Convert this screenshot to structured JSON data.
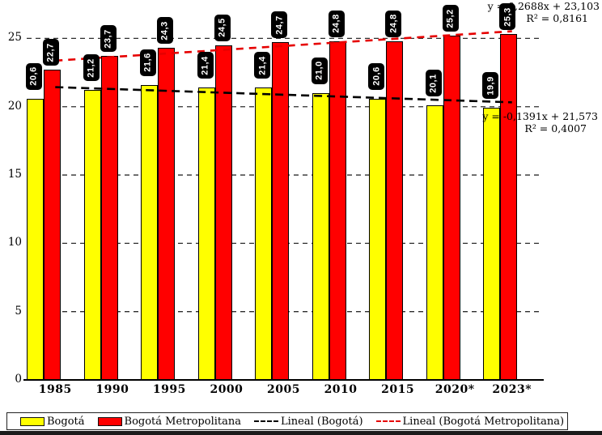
{
  "chart_data": {
    "type": "bar",
    "title": "",
    "categories": [
      "1985",
      "1990",
      "1995",
      "2000",
      "2005",
      "2010",
      "2015",
      "2020*",
      "2023*"
    ],
    "series": [
      {
        "name": "Bogotá",
        "color": "#FFFF00",
        "values": [
          20.6,
          21.2,
          21.6,
          21.4,
          21.4,
          21.0,
          20.6,
          20.1,
          19.9
        ],
        "labels": [
          "20,6",
          "21,2",
          "21,6",
          "21,4",
          "21,4",
          "21,0",
          "20,6",
          "20,1",
          "19,9"
        ]
      },
      {
        "name": "Bogotá Metropolitana",
        "color": "#FF0000",
        "values": [
          22.7,
          23.7,
          24.3,
          24.5,
          24.7,
          24.8,
          24.8,
          25.2,
          25.3
        ],
        "labels": [
          "22,7",
          "23,7",
          "24,3",
          "24,5",
          "24,7",
          "24,8",
          "24,8",
          "25,2",
          "25,3"
        ]
      }
    ],
    "trendlines": [
      {
        "name": "Lineal (Bogotá)",
        "color": "#000000",
        "slope": -0.1391,
        "intercept": 21.573,
        "equation": "y = -0,1391x + 21,573",
        "r2": "R² = 0,4007"
      },
      {
        "name": "Lineal (Bogotá Metropolitana)",
        "color": "#E60000",
        "slope": 0.2688,
        "intercept": 23.103,
        "equation": "y = 0,2688x + 23,103",
        "r2": "R² = 0,8161"
      }
    ],
    "y_ticks": [
      0,
      5,
      10,
      15,
      20,
      25
    ],
    "ylim": [
      0,
      27
    ],
    "grid": "dashed horizontal lines at y ticks",
    "legend_position": "bottom"
  },
  "legend": {
    "items": [
      {
        "type": "box",
        "color": "#FFFF00",
        "label": "Bogotá"
      },
      {
        "type": "box",
        "color": "#FF0000",
        "label": "Bogotá Metropolitana"
      },
      {
        "type": "dash",
        "color": "#000000",
        "label": "Lineal (Bogotá)"
      },
      {
        "type": "dash",
        "color": "#E60000",
        "label": "Lineal (Bogotá Metropolitana)"
      }
    ]
  }
}
